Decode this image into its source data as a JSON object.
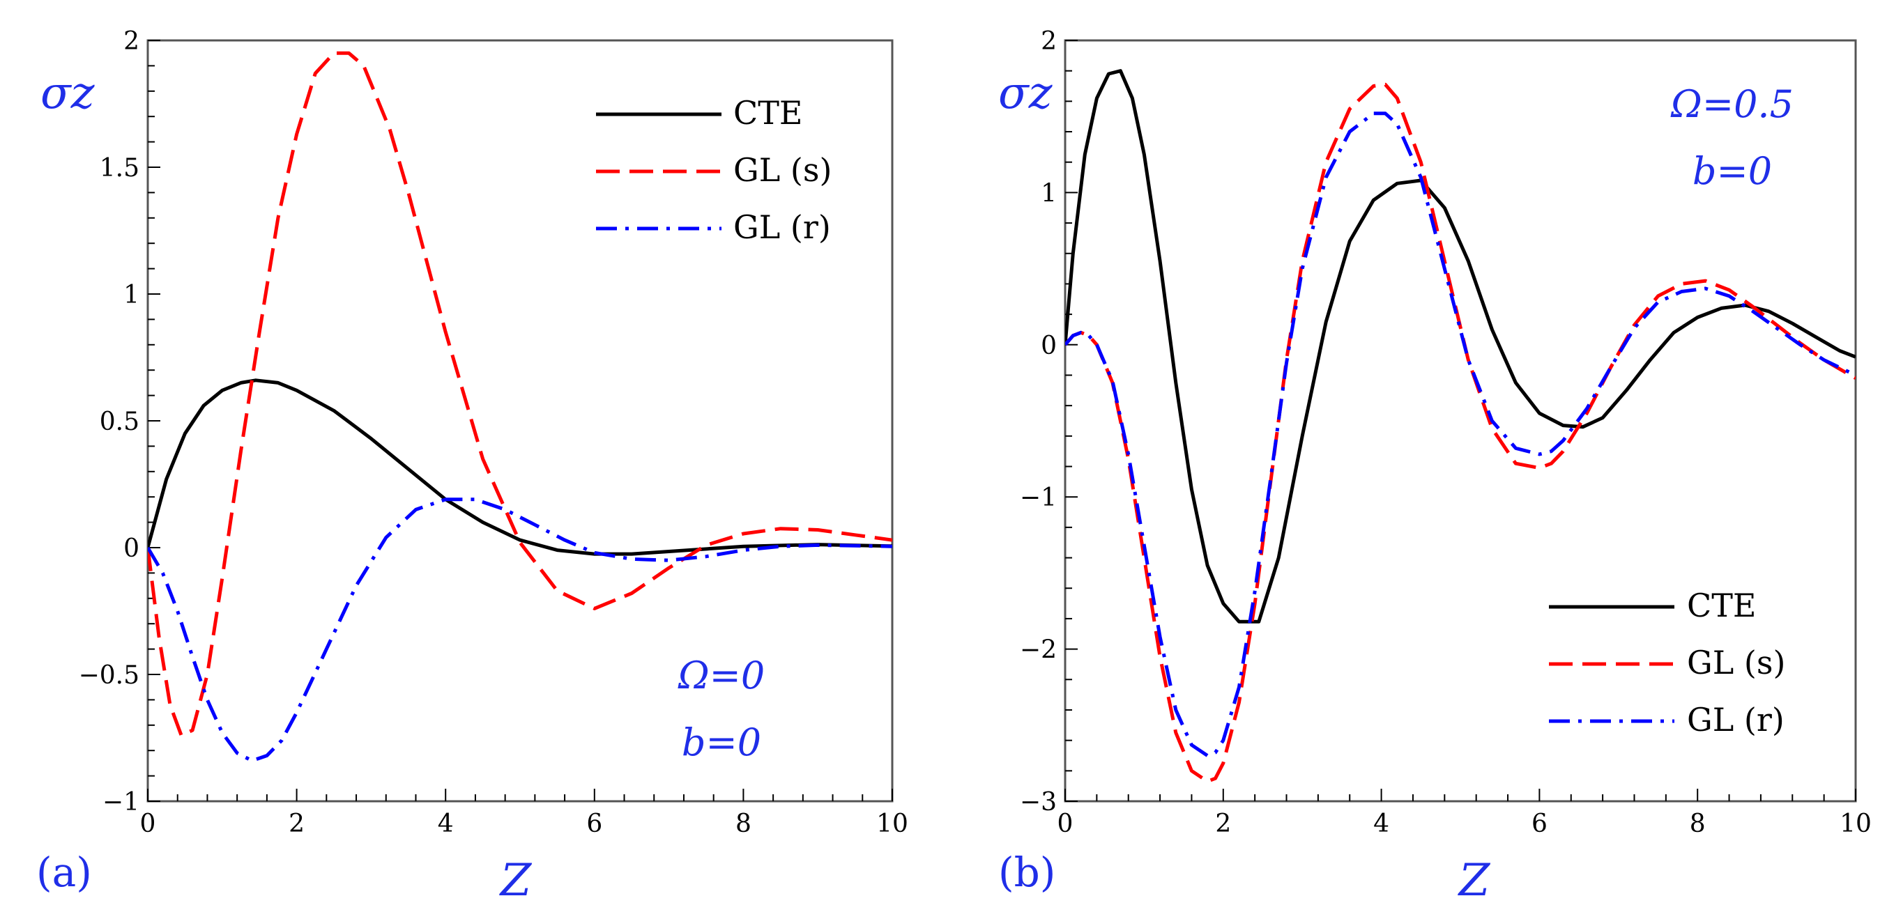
{
  "chart_data": [
    {
      "type": "line",
      "panel_label": "(a)",
      "xlabel": "Z",
      "ylabel": "σz",
      "xlim": [
        0,
        10
      ],
      "ylim": [
        -1,
        2
      ],
      "xticks": [
        0,
        2,
        4,
        6,
        8,
        10
      ],
      "yticks": [
        -1,
        -0.5,
        0,
        0.5,
        1,
        1.5,
        2
      ],
      "ytick_labels": [
        "−1",
        "−0.5",
        "0",
        "0.5",
        "1",
        "1.5",
        "2"
      ],
      "xtick_labels": [
        "0",
        "2",
        "4",
        "6",
        "8",
        "10"
      ],
      "legend_position": "top-right",
      "annotations": [
        "Ω=0",
        "b=0"
      ],
      "series": [
        {
          "name": "CTE",
          "color": "#000000",
          "style": "solid",
          "x": [
            0,
            0.25,
            0.5,
            0.75,
            1.0,
            1.25,
            1.45,
            1.75,
            2.0,
            2.5,
            3.0,
            3.5,
            4.0,
            4.5,
            5.0,
            5.5,
            6.0,
            6.5,
            7.0,
            8.0,
            9.0,
            10.0
          ],
          "y": [
            0,
            0.27,
            0.45,
            0.56,
            0.62,
            0.65,
            0.66,
            0.65,
            0.62,
            0.54,
            0.43,
            0.31,
            0.19,
            0.1,
            0.03,
            -0.01,
            -0.025,
            -0.025,
            -0.015,
            0.005,
            0.012,
            0.006
          ]
        },
        {
          "name": "GL (s)",
          "color": "#ff0000",
          "style": "dashed",
          "x": [
            0,
            0.15,
            0.3,
            0.45,
            0.6,
            0.8,
            1.0,
            1.25,
            1.5,
            1.75,
            2.0,
            2.25,
            2.5,
            2.7,
            2.9,
            3.25,
            3.5,
            4.0,
            4.5,
            5.0,
            5.5,
            6.0,
            6.5,
            7.0,
            7.5,
            8.0,
            8.5,
            9.0,
            9.5,
            10.0
          ],
          "y": [
            0,
            -0.35,
            -0.62,
            -0.74,
            -0.72,
            -0.5,
            -0.12,
            0.38,
            0.85,
            1.3,
            1.63,
            1.87,
            1.95,
            1.95,
            1.9,
            1.65,
            1.4,
            0.85,
            0.35,
            0.02,
            -0.17,
            -0.24,
            -0.18,
            -0.08,
            0.01,
            0.055,
            0.075,
            0.07,
            0.05,
            0.03
          ]
        },
        {
          "name": "GL (r)",
          "color": "#0000ff",
          "style": "dashdot",
          "x": [
            0,
            0.2,
            0.4,
            0.6,
            0.8,
            1.0,
            1.2,
            1.4,
            1.6,
            1.8,
            2.0,
            2.4,
            2.8,
            3.2,
            3.6,
            4.0,
            4.4,
            4.8,
            5.2,
            5.6,
            6.0,
            6.5,
            7.0,
            7.5,
            8.0,
            8.5,
            9.0,
            10.0
          ],
          "y": [
            0,
            -0.1,
            -0.25,
            -0.43,
            -0.6,
            -0.73,
            -0.81,
            -0.84,
            -0.82,
            -0.76,
            -0.65,
            -0.4,
            -0.15,
            0.04,
            0.15,
            0.19,
            0.19,
            0.15,
            0.09,
            0.03,
            -0.02,
            -0.045,
            -0.05,
            -0.035,
            -0.01,
            0.005,
            0.01,
            0.005
          ]
        }
      ]
    },
    {
      "type": "line",
      "panel_label": "(b)",
      "xlabel": "Z",
      "ylabel": "σz",
      "xlim": [
        0,
        10
      ],
      "ylim": [
        -3,
        2
      ],
      "xticks": [
        0,
        2,
        4,
        6,
        8,
        10
      ],
      "yticks": [
        -3,
        -2,
        -1,
        0,
        1,
        2
      ],
      "ytick_labels": [
        "−3",
        "−2",
        "−1",
        "0",
        "1",
        "2"
      ],
      "xtick_labels": [
        "0",
        "2",
        "4",
        "6",
        "8",
        "10"
      ],
      "legend_position": "bottom-right",
      "annotations": [
        "Ω=0.5",
        "b=0"
      ],
      "series": [
        {
          "name": "CTE",
          "color": "#000000",
          "style": "solid",
          "x": [
            0,
            0.1,
            0.25,
            0.4,
            0.55,
            0.7,
            0.85,
            1.0,
            1.2,
            1.4,
            1.6,
            1.8,
            2.0,
            2.2,
            2.45,
            2.7,
            3.0,
            3.3,
            3.6,
            3.9,
            4.2,
            4.5,
            4.8,
            5.1,
            5.4,
            5.7,
            6.0,
            6.3,
            6.55,
            6.8,
            7.1,
            7.4,
            7.7,
            8.0,
            8.3,
            8.6,
            8.9,
            9.2,
            9.5,
            9.8,
            10.0
          ],
          "y": [
            0,
            0.6,
            1.25,
            1.62,
            1.78,
            1.8,
            1.62,
            1.25,
            0.55,
            -0.25,
            -0.95,
            -1.45,
            -1.7,
            -1.82,
            -1.82,
            -1.4,
            -0.6,
            0.15,
            0.68,
            0.95,
            1.06,
            1.08,
            0.9,
            0.55,
            0.1,
            -0.25,
            -0.45,
            -0.53,
            -0.54,
            -0.48,
            -0.3,
            -0.1,
            0.08,
            0.18,
            0.24,
            0.26,
            0.22,
            0.14,
            0.05,
            -0.04,
            -0.08
          ]
        },
        {
          "name": "GL (s)",
          "color": "#ff0000",
          "style": "dashed",
          "x": [
            0,
            0.1,
            0.2,
            0.3,
            0.4,
            0.6,
            0.8,
            1.0,
            1.2,
            1.4,
            1.6,
            1.8,
            1.9,
            2.0,
            2.2,
            2.4,
            2.6,
            2.8,
            3.0,
            3.3,
            3.6,
            3.9,
            4.05,
            4.2,
            4.5,
            4.8,
            5.1,
            5.4,
            5.7,
            6.0,
            6.15,
            6.3,
            6.6,
            6.9,
            7.2,
            7.5,
            7.8,
            8.1,
            8.4,
            8.7,
            9.0,
            9.3,
            9.6,
            10.0
          ],
          "y": [
            0,
            0.06,
            0.08,
            0.06,
            0.0,
            -0.25,
            -0.75,
            -1.4,
            -2.05,
            -2.55,
            -2.8,
            -2.87,
            -2.85,
            -2.75,
            -2.35,
            -1.7,
            -0.9,
            -0.1,
            0.55,
            1.2,
            1.55,
            1.7,
            1.71,
            1.62,
            1.2,
            0.55,
            -0.1,
            -0.55,
            -0.78,
            -0.81,
            -0.78,
            -0.7,
            -0.45,
            -0.15,
            0.13,
            0.32,
            0.4,
            0.42,
            0.36,
            0.25,
            0.13,
            0.01,
            -0.1,
            -0.22
          ]
        },
        {
          "name": "GL (r)",
          "color": "#0000ff",
          "style": "dashdot",
          "x": [
            0,
            0.1,
            0.2,
            0.3,
            0.4,
            0.6,
            0.8,
            1.0,
            1.2,
            1.4,
            1.6,
            1.8,
            1.9,
            2.0,
            2.2,
            2.4,
            2.6,
            2.8,
            3.0,
            3.3,
            3.6,
            3.9,
            4.05,
            4.2,
            4.5,
            4.8,
            5.1,
            5.4,
            5.7,
            6.0,
            6.15,
            6.3,
            6.6,
            6.9,
            7.2,
            7.5,
            7.8,
            8.1,
            8.4,
            8.7,
            9.0,
            9.3,
            9.6,
            10.0
          ],
          "y": [
            0,
            0.06,
            0.08,
            0.06,
            0.0,
            -0.24,
            -0.72,
            -1.32,
            -1.92,
            -2.4,
            -2.63,
            -2.7,
            -2.68,
            -2.6,
            -2.25,
            -1.62,
            -0.88,
            -0.12,
            0.5,
            1.1,
            1.4,
            1.52,
            1.52,
            1.45,
            1.1,
            0.5,
            -0.1,
            -0.5,
            -0.68,
            -0.72,
            -0.7,
            -0.63,
            -0.42,
            -0.15,
            0.11,
            0.28,
            0.35,
            0.37,
            0.32,
            0.22,
            0.11,
            0.0,
            -0.1,
            -0.2
          ]
        }
      ]
    }
  ]
}
